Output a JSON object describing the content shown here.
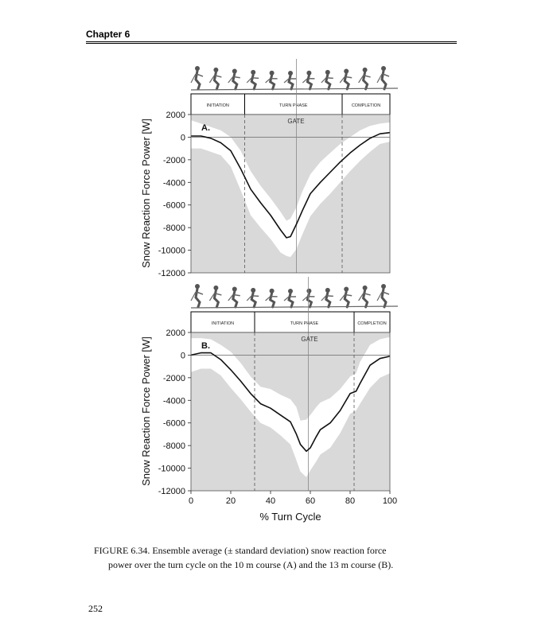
{
  "header": {
    "chapter": "Chapter 6"
  },
  "page_number": "252",
  "caption": {
    "line1": "FIGURE 6.34.  Ensemble average (± standard deviation) snow reaction force",
    "line2": "power over the turn cycle on the 10 m course (A) and the 13 m course (B)."
  },
  "chart_data": [
    {
      "type": "line",
      "panel_label": "A.",
      "phases": [
        "INITIATION",
        "TURN PHASE",
        "COMPLETION"
      ],
      "phase_boundaries": [
        27,
        53,
        76
      ],
      "gate_label": "GATE",
      "ylabel": "Snow Reaction Force Power [W]",
      "xlabel": "",
      "xlim": [
        0,
        100
      ],
      "ylim": [
        -12000,
        2000
      ],
      "yticks": [
        "2000",
        "0",
        "-2000",
        "-4000",
        "-6000",
        "-8000",
        "-10000",
        "-12000"
      ],
      "x": [
        0,
        5,
        10,
        15,
        20,
        25,
        30,
        35,
        40,
        45,
        48,
        50,
        53,
        56,
        60,
        65,
        70,
        75,
        80,
        85,
        90,
        95,
        100
      ],
      "mean": [
        100,
        100,
        -100,
        -500,
        -1200,
        -2800,
        -4600,
        -5800,
        -6900,
        -8200,
        -8900,
        -8800,
        -7700,
        -6500,
        -5000,
        -4000,
        -3100,
        -2200,
        -1400,
        -700,
        -100,
        300,
        400
      ],
      "upper": [
        1500,
        1200,
        900,
        600,
        0,
        -1200,
        -3000,
        -4300,
        -5400,
        -6600,
        -7400,
        -7200,
        -6200,
        -4800,
        -3300,
        -2200,
        -1400,
        -600,
        0,
        600,
        1000,
        1200,
        1300
      ],
      "lower": [
        -1000,
        -1000,
        -1300,
        -1600,
        -2600,
        -4700,
        -6900,
        -8000,
        -9000,
        -10200,
        -10500,
        -10600,
        -9900,
        -8600,
        -7000,
        -5900,
        -5000,
        -4000,
        -3000,
        -2100,
        -1300,
        -600,
        -400
      ]
    },
    {
      "type": "line",
      "panel_label": "B.",
      "phases": [
        "INITIATION",
        "TURN PHASE",
        "COMPLETION"
      ],
      "phase_boundaries": [
        32,
        59,
        82
      ],
      "gate_label": "GATE",
      "ylabel": "Snow Reaction Force Power [W]",
      "xlabel": "% Turn Cycle",
      "xlim": [
        0,
        100
      ],
      "ylim": [
        -12000,
        2000
      ],
      "yticks": [
        "2000",
        "0",
        "-2000",
        "-4000",
        "-6000",
        "-8000",
        "-10000",
        "-12000"
      ],
      "xticks": [
        "0",
        "20",
        "40",
        "60",
        "80",
        "100"
      ],
      "x": [
        0,
        5,
        10,
        15,
        20,
        25,
        30,
        35,
        40,
        45,
        50,
        53,
        55,
        58,
        60,
        63,
        65,
        70,
        75,
        80,
        83,
        85,
        90,
        95,
        100
      ],
      "mean": [
        0,
        200,
        200,
        -400,
        -1300,
        -2300,
        -3400,
        -4300,
        -4700,
        -5300,
        -5900,
        -7000,
        -7900,
        -8500,
        -8200,
        -7200,
        -6600,
        -6000,
        -4900,
        -3400,
        -3200,
        -2500,
        -900,
        -300,
        -100
      ],
      "upper": [
        1500,
        1500,
        1400,
        900,
        300,
        -700,
        -1900,
        -2800,
        -3000,
        -3500,
        -3900,
        -4600,
        -5800,
        -5700,
        -5300,
        -4600,
        -4200,
        -3800,
        -3000,
        -1900,
        -1600,
        -600,
        900,
        1400,
        1600
      ],
      "lower": [
        -1500,
        -1200,
        -1200,
        -1800,
        -2900,
        -3900,
        -5000,
        -6000,
        -6400,
        -7100,
        -7900,
        -9300,
        -10300,
        -10800,
        -10200,
        -9400,
        -8800,
        -8200,
        -6900,
        -5200,
        -4900,
        -4300,
        -2900,
        -2000,
        -1600
      ]
    }
  ]
}
